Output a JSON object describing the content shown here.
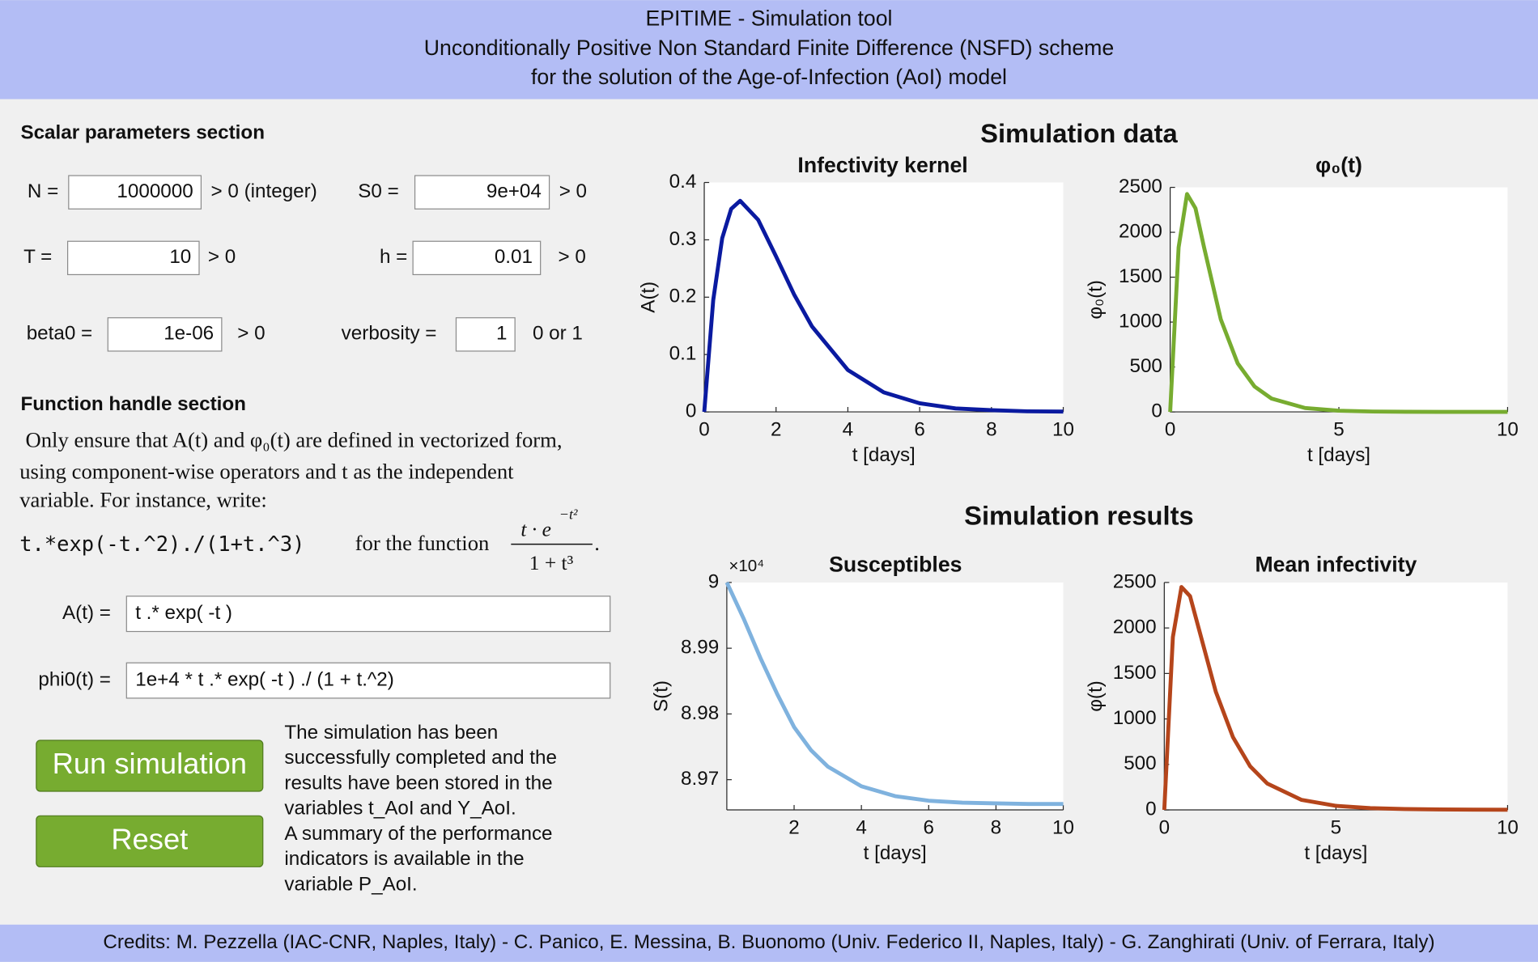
{
  "header": {
    "lines": [
      "EPITIME - Simulation tool",
      "Unconditionally Positive Non Standard Finite Difference (NSFD) scheme",
      "for the solution of the Age-of-Infection (AoI) model"
    ]
  },
  "scalar_section": {
    "heading": "Scalar parameters section",
    "fields": [
      {
        "label": "N =",
        "value": "1000000",
        "hint": "> 0 (integer)"
      },
      {
        "label": "S0 =",
        "value": "9e+04",
        "hint": "> 0"
      },
      {
        "label": "T =",
        "value": "10",
        "hint": "> 0"
      },
      {
        "label": "h =",
        "value": "0.01",
        "hint": "> 0"
      },
      {
        "label": "beta0 =",
        "value": "1e-06",
        "hint": "> 0"
      },
      {
        "label": "verbosity =",
        "value": "1",
        "hint": "0 or 1"
      }
    ]
  },
  "function_section": {
    "heading": "Function handle section",
    "paragraph": [
      "Only ensure that A(t) and φ₀(t) are defined in vectorized form,",
      "using component-wise operators and t as the independent",
      "variable. For instance, write:"
    ],
    "example_code": "t.*exp(-t.^2)./(1+t.^3)",
    "example_text": "for the function",
    "fraction_numerator": "t · e",
    "fraction_exponent": "−t²",
    "fraction_denominator": "1 + t³",
    "fraction_end": ".",
    "fields": [
      {
        "label": "A(t) =",
        "value": "t .* exp( -t )"
      },
      {
        "label": "phi0(t) =",
        "value": "1e+4 * t .* exp( -t ) ./ (1 + t.^2)"
      }
    ]
  },
  "buttons": [
    "Run simulation",
    "Reset"
  ],
  "message": [
    "The simulation has been",
    "successfully completed and the",
    "results have been stored in the",
    "variables t_AoI and Y_AoI.",
    "A summary of the performance",
    "indicators is available in the",
    "variable P_AoI."
  ],
  "sections": [
    "Simulation data",
    "Simulation results"
  ],
  "chart_data": [
    {
      "type": "line",
      "title": "Infectivity kernel",
      "x_label": "t [days]",
      "y_label": "A(t)",
      "color": "#0a1aa0",
      "x": [
        0,
        0.25,
        0.5,
        0.75,
        1,
        1.5,
        2,
        2.5,
        3,
        4,
        5,
        6,
        7,
        8,
        9,
        10
      ],
      "values": [
        0,
        0.195,
        0.303,
        0.354,
        0.368,
        0.335,
        0.271,
        0.205,
        0.149,
        0.073,
        0.034,
        0.015,
        0.006,
        0.003,
        0.001,
        0.0005
      ],
      "xlim": [
        0,
        10
      ],
      "xticks": [
        0,
        2,
        4,
        6,
        8,
        10
      ],
      "ylim": [
        0,
        0.4
      ],
      "yticks": [
        0,
        0.1,
        0.2,
        0.3,
        0.4
      ]
    },
    {
      "type": "line",
      "title": "φ₀(t)",
      "x_label": "t [days]",
      "y_label": "φ₀(t)",
      "color": "#77ac30",
      "x": [
        0,
        0.25,
        0.5,
        0.75,
        1,
        1.5,
        2,
        2.5,
        3,
        4,
        5,
        6,
        7,
        8,
        9,
        10
      ],
      "values": [
        0,
        1832,
        2426,
        2267,
        1839,
        1030,
        541,
        283,
        149,
        43,
        13,
        4,
        1,
        0,
        0,
        0
      ],
      "xlim": [
        0,
        10
      ],
      "xticks": [
        0,
        5,
        10
      ],
      "ylim": [
        0,
        2500
      ],
      "yticks": [
        0,
        500,
        1000,
        1500,
        2000,
        2500
      ]
    },
    {
      "type": "line",
      "title": "Susceptibles",
      "x_label": "t [days]",
      "y_label": "S(t)",
      "y_exponent": "×10⁴",
      "color": "#7fb2de",
      "x": [
        0,
        0.5,
        1,
        1.5,
        2,
        2.5,
        3,
        4,
        5,
        6,
        7,
        8,
        9,
        10
      ],
      "values": [
        90000,
        89945,
        89885,
        89830,
        89780,
        89745,
        89720,
        89690,
        89675,
        89668,
        89665,
        89664,
        89663,
        89663
      ],
      "xlim": [
        0,
        10
      ],
      "xticks": [
        2,
        4,
        6,
        8,
        10
      ],
      "ylim": [
        89654,
        90000
      ],
      "yticks": [
        {
          "value": 89700,
          "label": "8.97"
        },
        {
          "value": 89800,
          "label": "8.98"
        },
        {
          "value": 89900,
          "label": "8.99"
        },
        {
          "value": 90000,
          "label": "9"
        }
      ]
    },
    {
      "type": "line",
      "title": "Mean infectivity",
      "x_label": "t [days]",
      "y_label": "φ(t)",
      "color": "#b5451b",
      "x": [
        0,
        0.25,
        0.5,
        0.75,
        1,
        1.5,
        2,
        2.5,
        3,
        4,
        5,
        6,
        7,
        8,
        9,
        10
      ],
      "values": [
        0,
        1900,
        2450,
        2350,
        2000,
        1300,
        800,
        480,
        290,
        110,
        45,
        20,
        10,
        5,
        3,
        2
      ],
      "xlim": [
        0,
        10
      ],
      "xticks": [
        0,
        5,
        10
      ],
      "ylim": [
        0,
        2500
      ],
      "yticks": [
        0,
        500,
        1000,
        1500,
        2000,
        2500
      ]
    }
  ],
  "footer": "Credits: M. Pezzella (IAC-CNR, Naples, Italy) - C. Panico, E. Messina, B. Buonomo (Univ. Federico II, Naples, Italy) - G. Zanghirati (Univ. of Ferrara, Italy)"
}
